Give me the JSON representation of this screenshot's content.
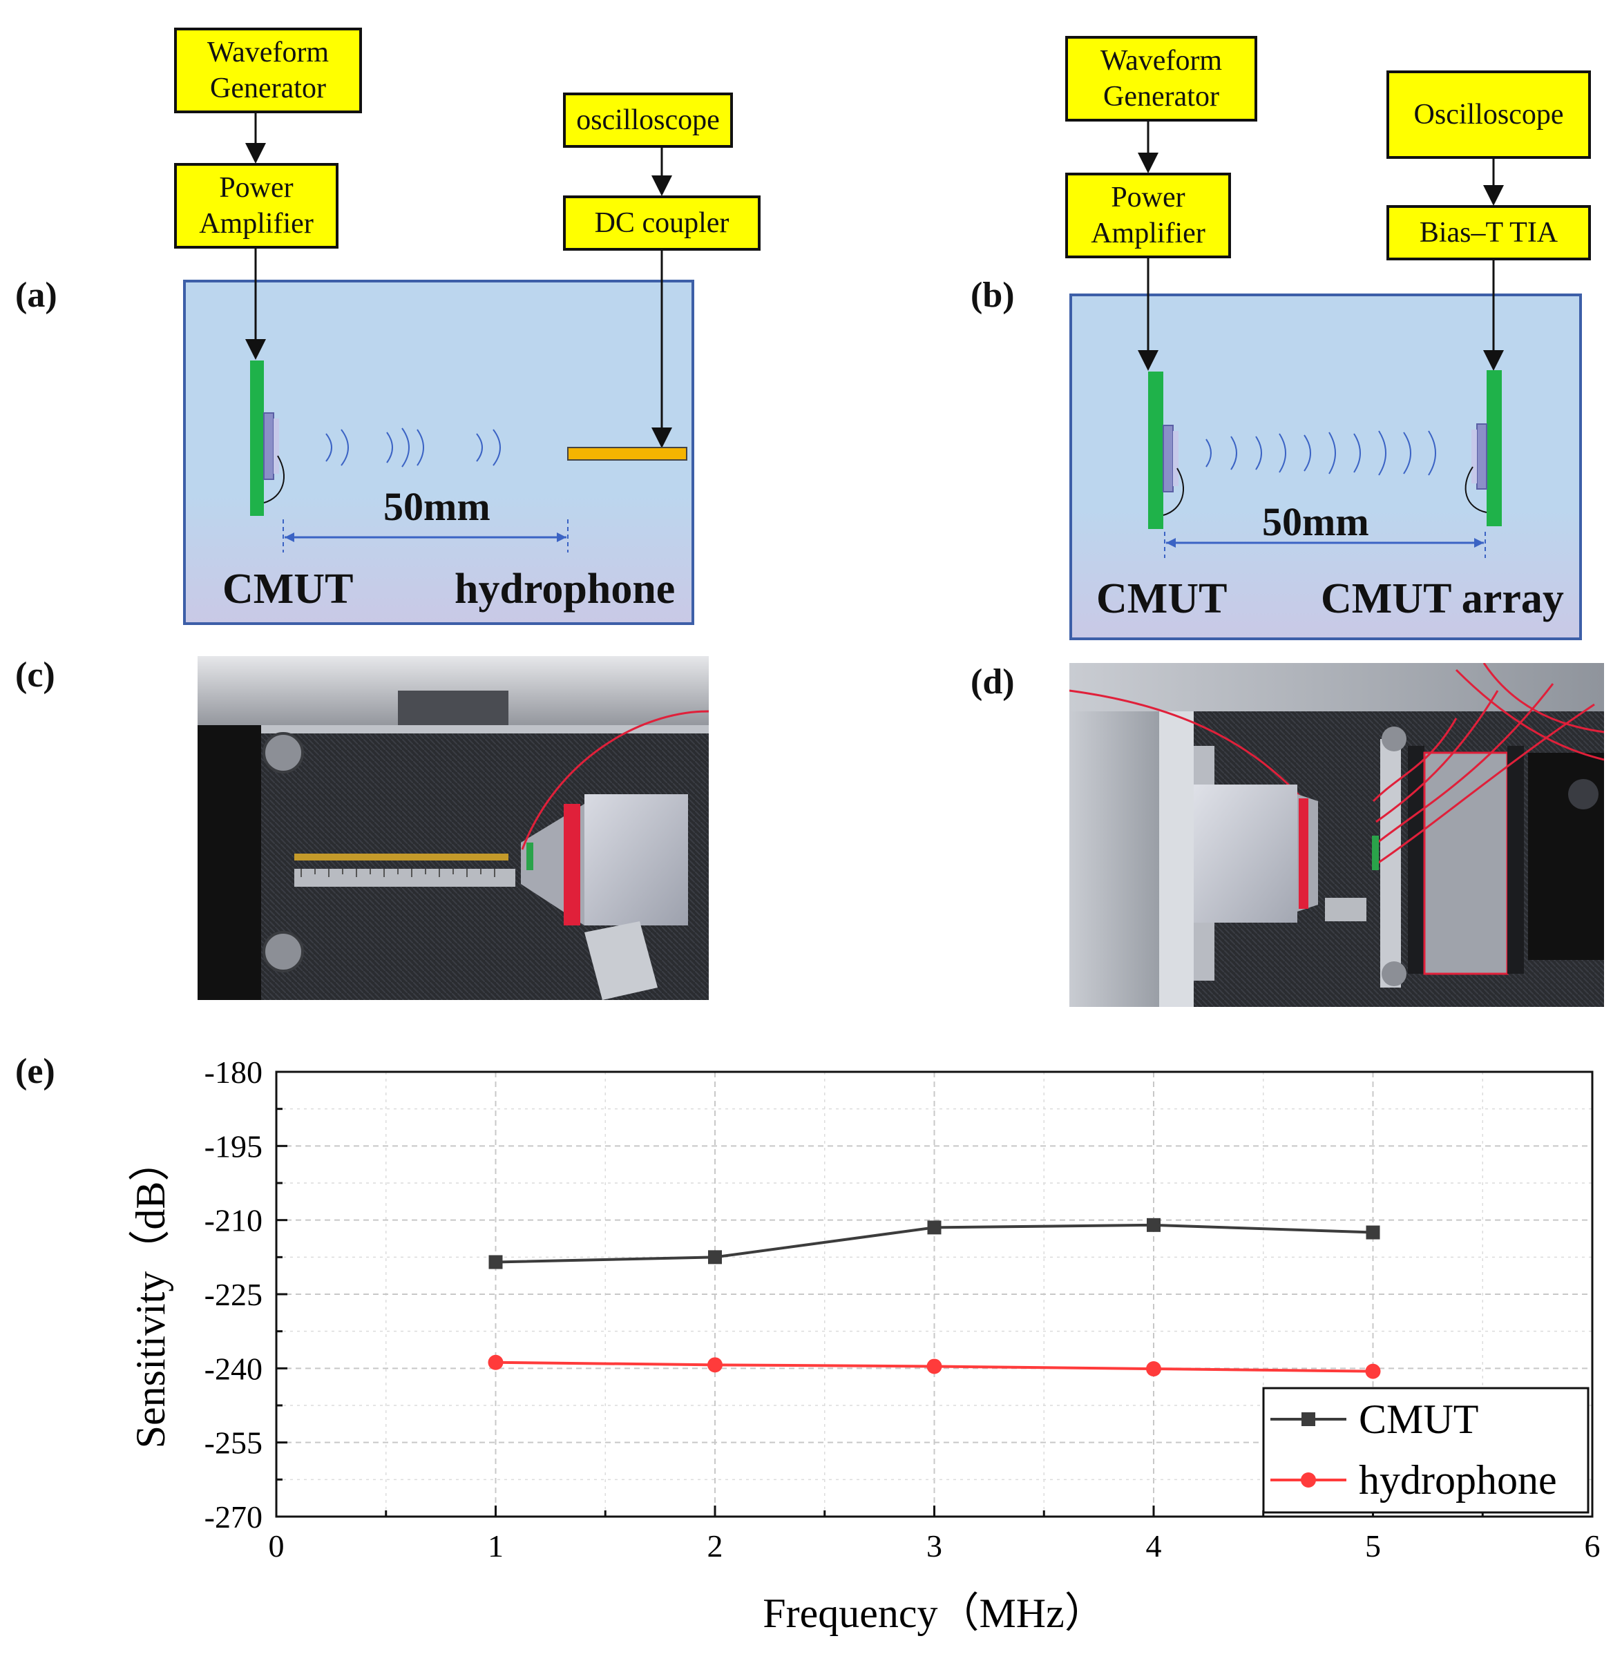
{
  "panel_labels": {
    "a": "(a)",
    "b": "(b)",
    "c": "(c)",
    "d": "(d)",
    "e": "(e)"
  },
  "diagram_a": {
    "waveform_generator": "Waveform\nGenerator",
    "power_amplifier": "Power\nAmplifier",
    "oscilloscope": "oscilloscope",
    "coupler": "DC coupler",
    "distance": "50mm",
    "transmitter": "CMUT",
    "receiver": "hydrophone"
  },
  "diagram_b": {
    "waveform_generator": "Waveform\nGenerator",
    "power_amplifier": "Power\nAmplifier",
    "oscilloscope": "Oscilloscope",
    "amplifier": "Bias–T TIA",
    "distance": "50mm",
    "transmitter": "CMUT",
    "receiver": "CMUT array"
  },
  "colors": {
    "box_fill": "#ffff00",
    "tank_fill": "#bcd6ee",
    "pcb_green": "#1fb24a",
    "hydrophone_orange": "#f5b400",
    "dimension_blue": "#3b63c4",
    "cmut_series": "#3c3c3c",
    "hydrophone_series": "#ff3b3b"
  },
  "chart_data": {
    "type": "line",
    "xlabel": "Frequency（MHz）",
    "ylabel": "Sensitivity（dB）",
    "xlim": [
      0,
      6
    ],
    "ylim": [
      -270,
      -180
    ],
    "xticks": [
      0,
      1,
      2,
      3,
      4,
      5,
      6
    ],
    "yticks": [
      -180,
      -195,
      -210,
      -225,
      -240,
      -255,
      -270
    ],
    "grid": true,
    "legend_position": "bottom-right",
    "series": [
      {
        "name": "CMUT",
        "marker": "square",
        "color": "#3c3c3c",
        "x": [
          1,
          2,
          3,
          4,
          5
        ],
        "y": [
          -218.5,
          -217.5,
          -211.5,
          -211.0,
          -212.5
        ]
      },
      {
        "name": "hydrophone",
        "marker": "circle",
        "color": "#ff3b3b",
        "x": [
          1,
          2,
          3,
          4,
          5
        ],
        "y": [
          -238.8,
          -239.3,
          -239.6,
          -240.1,
          -240.6
        ]
      }
    ]
  }
}
